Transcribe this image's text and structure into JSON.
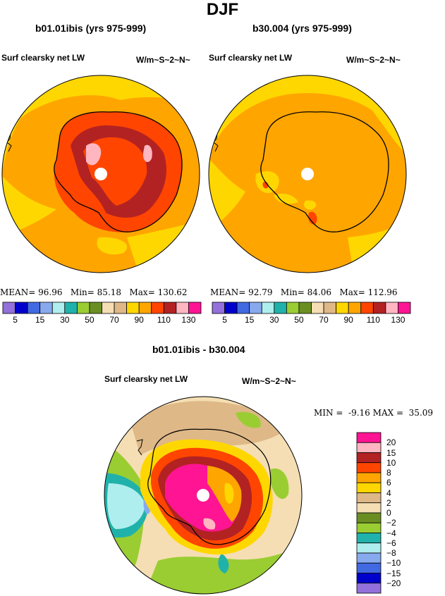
{
  "figure": {
    "title": "DJF"
  },
  "panels": [
    {
      "title": "b01.01ibis (yrs 975-999)",
      "variable": "Surf clearsky net LW",
      "units": "W/m~S~2~N~",
      "stats": {
        "mean_label": "MEAN=",
        "mean": "96.96",
        "min_label": "Min=",
        "min": "85.18",
        "max_label": "Max=",
        "max": "130.62"
      }
    },
    {
      "title": "b30.004 (yrs 975-999)",
      "variable": "Surf clearsky net LW",
      "units": "W/m~S~2~N~",
      "stats": {
        "mean_label": "MEAN=",
        "mean": "92.79",
        "min_label": "Min=",
        "min": "84.06",
        "max_label": "Max=",
        "max": "112.96"
      }
    }
  ],
  "shared_colorbar": {
    "colors": [
      "#9370db",
      "#0000cd",
      "#4169e1",
      "#87a9ee",
      "#afeeee",
      "#20b2aa",
      "#9acd32",
      "#6b8e23",
      "#f5deb3",
      "#deb887",
      "#ffd700",
      "#ffa500",
      "#ff4500",
      "#b22222",
      "#ffb6c1",
      "#ff1493"
    ],
    "labels": [
      "5",
      "15",
      "30",
      "50",
      "70",
      "90",
      "110",
      "130"
    ]
  },
  "difference": {
    "title": "b01.01ibis - b30.004",
    "variable": "Surf clearsky net LW",
    "units": "W/m~S~2~N~",
    "stats": {
      "min_label": "MIN =",
      "min": "-9.16",
      "max_label": "MAX =",
      "max": "35.09"
    },
    "colorbar": {
      "colors": [
        "#ff1493",
        "#ffb6c1",
        "#b22222",
        "#ff4500",
        "#ffa500",
        "#ffd700",
        "#deb887",
        "#f5deb3",
        "#6b8e23",
        "#9acd32",
        "#20b2aa",
        "#afeeee",
        "#87a9ee",
        "#4169e1",
        "#0000cd",
        "#9370db"
      ],
      "labels": [
        "20",
        "15",
        "10",
        "8",
        "6",
        "4",
        "2",
        "0",
        "−2",
        "−4",
        "−6",
        "−8",
        "−10",
        "−15",
        "−20"
      ]
    }
  },
  "colors": {
    "background": "#ffffff",
    "ocean_low": "#ffd700",
    "ocean": "#ffa500",
    "pole_hole": "#ffffff",
    "coast": "#000000"
  }
}
